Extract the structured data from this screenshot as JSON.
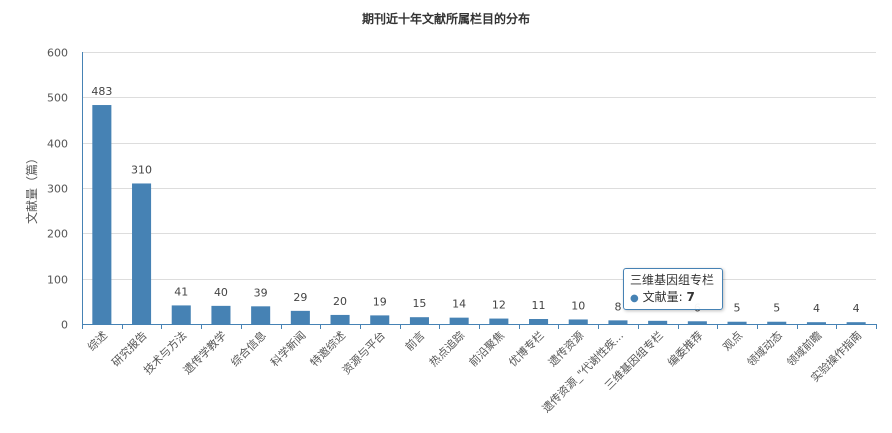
{
  "chart_data": {
    "type": "bar",
    "title": "期刊近十年文献所属栏目的分布",
    "ylabel": "文献量（篇）",
    "xlabel": "",
    "ylim": [
      0,
      600
    ],
    "yticks": [
      0,
      100,
      200,
      300,
      400,
      500,
      600
    ],
    "grid": true,
    "bar_color": "#4682b4",
    "categories": [
      "综述",
      "研究报告",
      "技术与方法",
      "遗传学教学",
      "综合信息",
      "科学新闻",
      "特邀综述",
      "资源与平台",
      "前言",
      "热点追踪",
      "前沿聚焦",
      "优博专栏",
      "遗传资源",
      "遗传资源_\"代谢性疾...",
      "三维基因组专栏",
      "编委推荐",
      "观点",
      "领域动态",
      "领域前瞻",
      "实验操作指南"
    ],
    "values": [
      483,
      310,
      41,
      40,
      39,
      29,
      20,
      19,
      15,
      14,
      12,
      11,
      10,
      8,
      7,
      6,
      5,
      5,
      4,
      4
    ],
    "data_labels": [
      "483",
      "310",
      "41",
      "40",
      "39",
      "29",
      "20",
      "19",
      "15",
      "14",
      "12",
      "11",
      "10",
      "8",
      "",
      "6",
      "5",
      "5",
      "4",
      "4"
    ],
    "tooltip": {
      "category": "三维基因组专栏",
      "series_label": "文献量",
      "value": "7"
    }
  }
}
